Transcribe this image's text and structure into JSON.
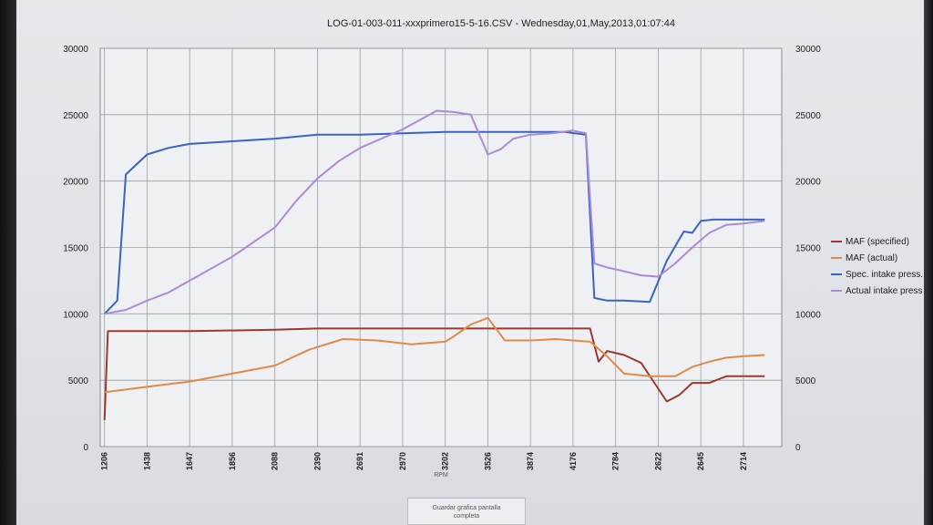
{
  "chart_data": {
    "type": "line",
    "title": "LOG-01-003-011-xxxprimero15-5-16.CSV - Wednesday,01,May,2013,01:07:44",
    "xlabel": "RPM",
    "x_tick_labels": [
      "1206",
      "1438",
      "1647",
      "1856",
      "2088",
      "2390",
      "2691",
      "2970",
      "3202",
      "3526",
      "3874",
      "4176",
      "2784",
      "2622",
      "2645",
      "2714"
    ],
    "y_left": {
      "ticks": [
        0,
        5000,
        10000,
        15000,
        20000,
        25000,
        30000
      ],
      "lim": [
        0,
        30000
      ]
    },
    "y_right": {
      "ticks": [
        0,
        5000,
        10000,
        15000,
        20000,
        25000,
        30000
      ],
      "lim": [
        0,
        30000
      ]
    },
    "grid": true,
    "legend_placement": "right",
    "series": [
      {
        "name": "MAF (specified)",
        "axis": "left",
        "color": "#9b3a2c",
        "x": [
          0,
          0.08,
          0.5,
          2,
          4,
          5,
          7,
          8,
          10,
          11.4,
          11.6,
          11.8,
          12.2,
          12.6,
          13.2,
          13.5,
          13.8,
          14.2,
          14.6,
          15,
          15.5
        ],
        "values": [
          2000,
          8700,
          8700,
          8700,
          8800,
          8900,
          8900,
          8900,
          8900,
          8900,
          6400,
          7200,
          6900,
          6300,
          3400,
          3900,
          4800,
          4800,
          5300,
          5300,
          5300
        ]
      },
      {
        "name": "MAF (actual)",
        "axis": "left",
        "color": "#e08a4a",
        "x": [
          0,
          1,
          2,
          3,
          4,
          4.8,
          5.6,
          6.4,
          7.2,
          8,
          8.2,
          8.6,
          9,
          9.4,
          10,
          10.6,
          11,
          11.4,
          11.8,
          12.2,
          12.8,
          13.4,
          13.8,
          14.2,
          14.6,
          15,
          15.5
        ],
        "values": [
          4100,
          4500,
          4900,
          5500,
          6100,
          7300,
          8100,
          8000,
          7700,
          7900,
          8300,
          9200,
          9700,
          8000,
          8000,
          8100,
          8000,
          7900,
          6800,
          5500,
          5300,
          5300,
          6000,
          6400,
          6700,
          6800,
          6900
        ]
      },
      {
        "name": "Spec. intake press.",
        "axis": "right",
        "color": "#3a63c4",
        "x": [
          0,
          0.3,
          0.5,
          1,
          1.5,
          2,
          3,
          4,
          5,
          6,
          7,
          8,
          9,
          10,
          10.8,
          11.3,
          11.5,
          11.8,
          12.2,
          12.8,
          13.2,
          13.6,
          13.8,
          14,
          14.3,
          14.6,
          15,
          15.5
        ],
        "values": [
          10000,
          11000,
          20500,
          22000,
          22500,
          22800,
          23000,
          23200,
          23500,
          23500,
          23600,
          23700,
          23700,
          23700,
          23700,
          23500,
          11200,
          11000,
          11000,
          10900,
          14000,
          16200,
          16100,
          17000,
          17100,
          17100,
          17100,
          17100
        ]
      },
      {
        "name": "Actual intake press",
        "axis": "right",
        "color": "#a98bd6",
        "x": [
          0,
          0.5,
          1,
          1.5,
          2,
          3,
          4,
          4.5,
          5,
          5.5,
          6,
          6.5,
          7,
          7.4,
          7.8,
          8.2,
          8.6,
          9,
          9.3,
          9.6,
          10,
          10.5,
          11,
          11.3,
          11.5,
          11.8,
          12.2,
          12.6,
          13,
          13.4,
          13.8,
          14.2,
          14.6,
          15,
          15.5
        ],
        "values": [
          10000,
          10300,
          11000,
          11600,
          12500,
          14300,
          16500,
          18500,
          20200,
          21500,
          22500,
          23200,
          23900,
          24600,
          25300,
          25200,
          25000,
          22000,
          22400,
          23200,
          23500,
          23600,
          23800,
          23600,
          13800,
          13500,
          13200,
          12900,
          12800,
          13800,
          15000,
          16100,
          16700,
          16800,
          17000
        ]
      }
    ]
  },
  "ui": {
    "save_button_label": "Guardar grafica pantalla\ncompleta"
  }
}
